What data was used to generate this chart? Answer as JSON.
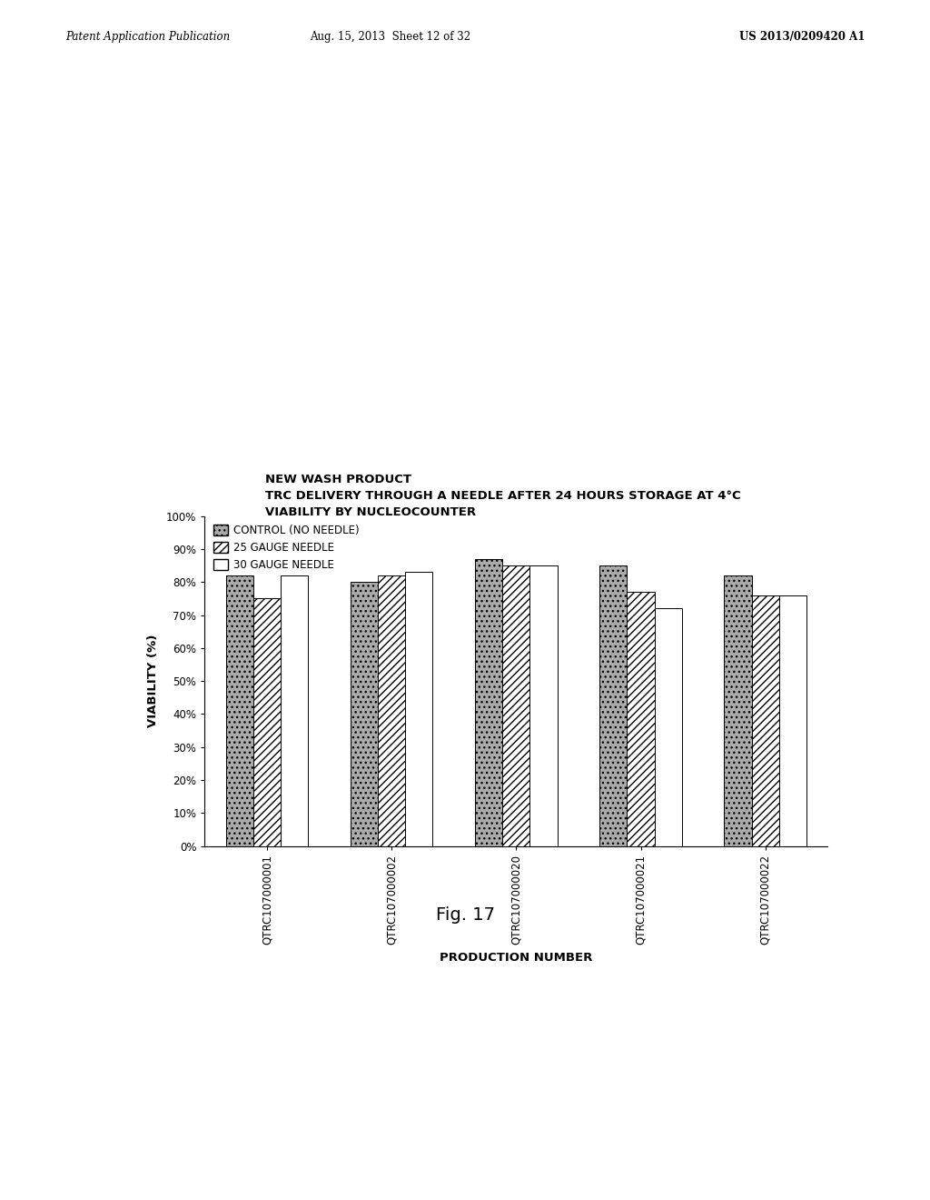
{
  "title_lines": [
    "NEW WASH PRODUCT",
    "TRC DELIVERY THROUGH A NEEDLE AFTER 24 HOURS STORAGE AT 4°C",
    "VIABILITY BY NUCLEOCOUNTER"
  ],
  "xlabel": "PRODUCTION NUMBER",
  "ylabel": "VIABILITY (%)",
  "categories": [
    "QTRC107000001",
    "QTRC107000002",
    "QTRC107000020",
    "QTRC107000021",
    "QTRC107000022"
  ],
  "legend_labels": [
    "CONTROL (NO NEEDLE)",
    "25 GAUGE NEEDLE",
    "30 GAUGE NEEDLE"
  ],
  "values": {
    "control": [
      82,
      80,
      87,
      85,
      82
    ],
    "gauge25": [
      75,
      82,
      85,
      77,
      76
    ],
    "gauge30": [
      82,
      83,
      85,
      72,
      76
    ]
  },
  "ylim": [
    0,
    100
  ],
  "yticks": [
    0,
    10,
    20,
    30,
    40,
    50,
    60,
    70,
    80,
    90,
    100
  ],
  "ytick_labels": [
    "0%",
    "10%",
    "20%",
    "30%",
    "40%",
    "50%",
    "60%",
    "70%",
    "80%",
    "90%",
    "100%"
  ],
  "fig_caption": "Fig. 17",
  "header_left": "Patent Application Publication",
  "header_center": "Aug. 15, 2013  Sheet 12 of 32",
  "header_right": "US 2013/0209420 A1",
  "background_color": "#ffffff",
  "bar_width": 0.22
}
